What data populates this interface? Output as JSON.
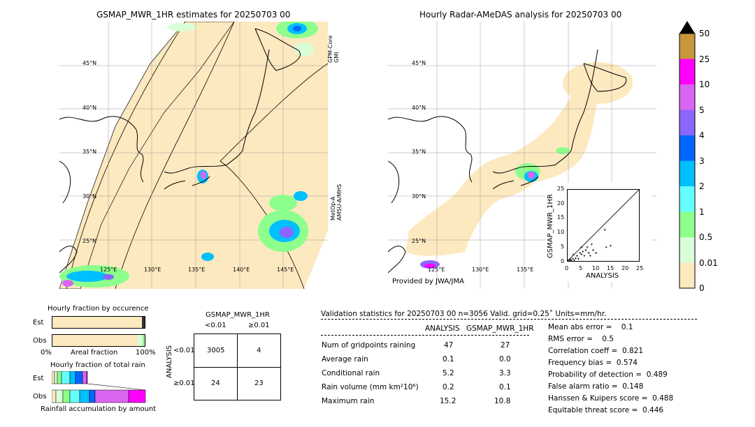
{
  "left_map": {
    "title": "GSMAP_MWR_1HR estimates for 20250703 00",
    "lat_labels": [
      "45°N",
      "40°N",
      "35°N",
      "30°N",
      "25°N"
    ],
    "lon_labels": [
      "125°E",
      "130°E",
      "135°E",
      "140°E",
      "145°E"
    ],
    "swath_labels": [
      "GPM-Core\nGMI",
      "MetOp-A\nAMSU-A/MHS"
    ]
  },
  "right_map": {
    "title": "Hourly Radar-AMeDAS analysis for 20250703 00",
    "lat_labels": [
      "45°N",
      "40°N",
      "35°N",
      "30°N",
      "25°N"
    ],
    "lon_labels": [
      "125°E",
      "130°E",
      "135°E"
    ],
    "provider": "Provided by JWA/JMA"
  },
  "colorbar": {
    "labels": [
      "50",
      "25",
      "10",
      "5",
      "4",
      "3",
      "2",
      "1",
      "0.5",
      "0.01",
      "0"
    ],
    "colors": [
      "#c8963c",
      "#ff00ff",
      "#d966f0",
      "#8c66ff",
      "#0066ff",
      "#00bfff",
      "#66ffff",
      "#8cff8c",
      "#d9ffd9",
      "#fde9bf"
    ],
    "over_color": "#000000"
  },
  "chart_data": [
    {
      "type": "scatter",
      "title": "",
      "xlabel": "ANALYSIS",
      "ylabel": "GSMAP_MWR_1HR",
      "xlim": [
        0,
        25
      ],
      "ylim": [
        0,
        25
      ],
      "x_ticks": [
        "0",
        "5",
        "10",
        "15",
        "20",
        "25"
      ],
      "y_ticks": [
        "0",
        "5",
        "10",
        "15",
        "20",
        "25"
      ],
      "points": [
        [
          0.2,
          0.1
        ],
        [
          0.5,
          0.2
        ],
        [
          1,
          0.5
        ],
        [
          1.5,
          0.3
        ],
        [
          2,
          1
        ],
        [
          2.5,
          0.5
        ],
        [
          3,
          1.2
        ],
        [
          3.5,
          2
        ],
        [
          4,
          1
        ],
        [
          4.5,
          3
        ],
        [
          5,
          2.5
        ],
        [
          5,
          5
        ],
        [
          5.5,
          3.5
        ],
        [
          6,
          2
        ],
        [
          6.5,
          4
        ],
        [
          7,
          5
        ],
        [
          7.5,
          3
        ],
        [
          8,
          2
        ],
        [
          8.5,
          6
        ],
        [
          9,
          4
        ],
        [
          10,
          3
        ],
        [
          13,
          11
        ],
        [
          13.5,
          5
        ],
        [
          15,
          5.5
        ],
        [
          0.3,
          0.4
        ],
        [
          1.2,
          0.8
        ],
        [
          2.2,
          2.4
        ]
      ]
    },
    {
      "type": "bar",
      "title": "Hourly fraction by occurence",
      "categories": [
        "Est",
        "Obs"
      ],
      "x_labels": [
        "0%",
        "Areal fraction",
        "100%"
      ]
    },
    {
      "type": "bar",
      "title": "Hourly fraction of total rain",
      "categories": [
        "Est",
        "Obs"
      ],
      "xlabel": "Rainfall accumulation by amount"
    }
  ],
  "contingency": {
    "title": "GSMAP_MWR_1HR",
    "col_labels": [
      "<0.01",
      "≥0.01"
    ],
    "row_labels": [
      "<0.01",
      "≥0.01"
    ],
    "side_label": "ANALYSIS",
    "cells": [
      "3005",
      "4",
      "24",
      "23"
    ]
  },
  "validation": {
    "header": "Validation statistics for 20250703 00  n=3056 Valid. grid=0.25˚ Units=mm/hr.",
    "col_analysis": "ANALYSIS",
    "col_gsmap": "GSMAP_MWR_1HR",
    "rows": [
      {
        "label": "Num of gridpoints raining",
        "analysis": "47",
        "gsmap": "27"
      },
      {
        "label": "Average rain",
        "analysis": "0.1",
        "gsmap": "0.0"
      },
      {
        "label": "Conditional rain",
        "analysis": "5.2",
        "gsmap": "3.3"
      },
      {
        "label": "Rain volume (mm km²10⁶)",
        "analysis": "0.2",
        "gsmap": "0.1"
      },
      {
        "label": "Maximum rain",
        "analysis": "15.2",
        "gsmap": "10.8"
      }
    ],
    "scores": [
      "Mean abs error =    0.1",
      "RMS error =    0.5",
      "Correlation coeff =  0.821",
      "Frequency bias =  0.574",
      "Probability of detection =  0.489",
      "False alarm ratio =  0.148",
      "Hanssen & Kuipers score =  0.488",
      "Equitable threat score =  0.446"
    ]
  }
}
